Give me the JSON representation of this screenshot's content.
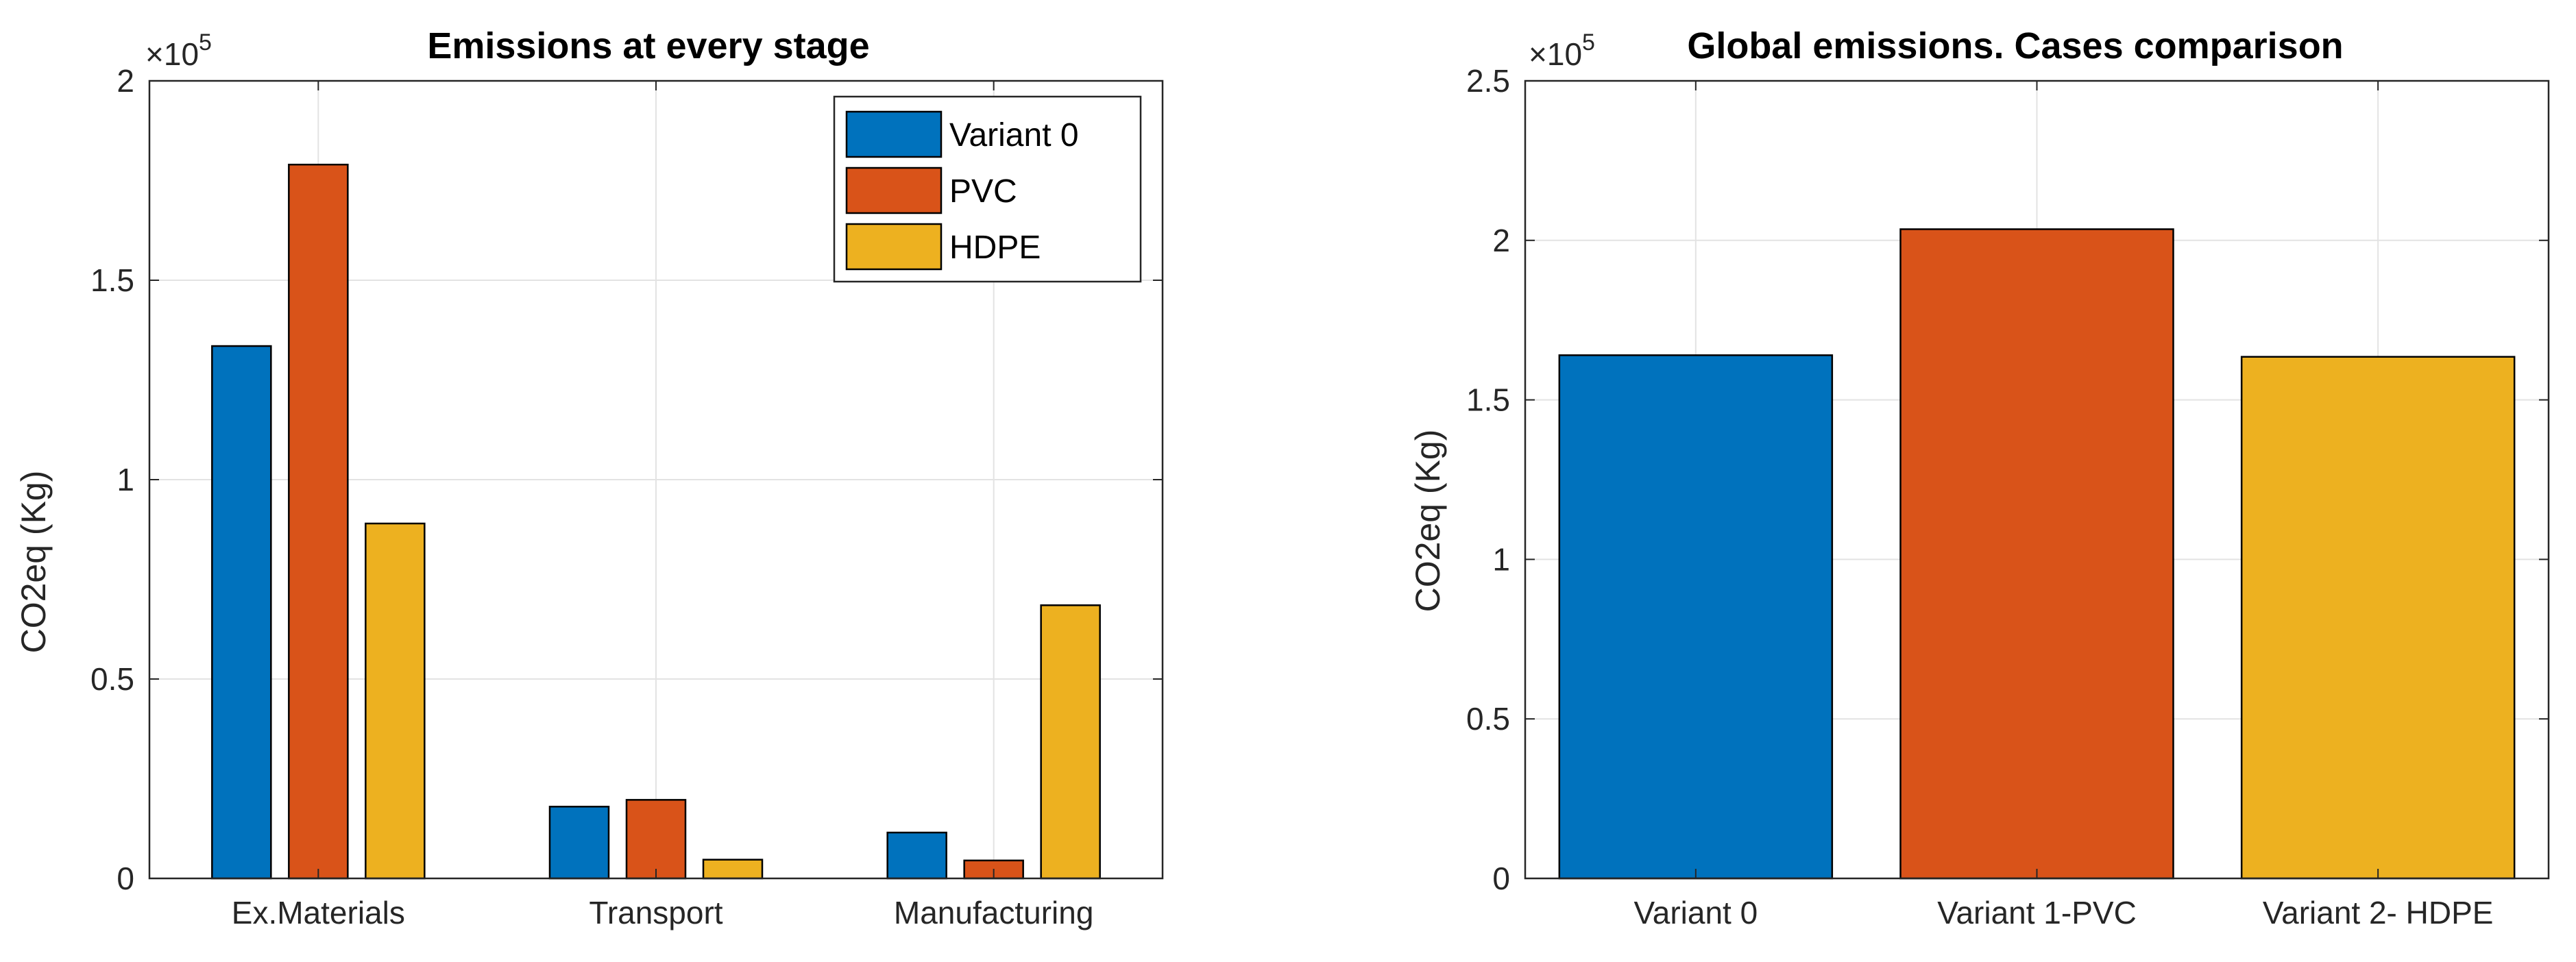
{
  "chart_data": [
    {
      "type": "bar",
      "title": "Emissions at every stage",
      "xlabel": "",
      "ylabel": "CO2eq (Kg)",
      "exponent_label": "×10",
      "exponent_power": "5",
      "ylim": [
        0,
        2
      ],
      "yticks": [
        "0",
        "0.5",
        "1",
        "1.5",
        "2"
      ],
      "ytick_values": [
        0,
        0.5,
        1,
        1.5,
        2
      ],
      "categories": [
        "Ex.Materials",
        "Transport",
        "Manufacturing"
      ],
      "series": [
        {
          "name": "Variant 0",
          "color": "#0072BD",
          "values": [
            1.335,
            0.18,
            0.115
          ]
        },
        {
          "name": "PVC",
          "color": "#D95319",
          "values": [
            1.79,
            0.197,
            0.045
          ]
        },
        {
          "name": "HDPE",
          "color": "#EDB120",
          "values": [
            0.89,
            0.047,
            0.685
          ]
        }
      ],
      "legend": "top-right",
      "grid": true
    },
    {
      "type": "bar",
      "title": "Global emissions. Cases comparison",
      "xlabel": "",
      "ylabel": "CO2eq (Kg)",
      "exponent_label": "×10",
      "exponent_power": "5",
      "ylim": [
        0,
        2.5
      ],
      "yticks": [
        "0",
        "0.5",
        "1",
        "1.5",
        "2",
        "2.5"
      ],
      "ytick_values": [
        0,
        0.5,
        1,
        1.5,
        2,
        2.5
      ],
      "categories": [
        "Variant 0",
        "Variant 1-PVC",
        "Variant 2- HDPE"
      ],
      "values": [
        1.64,
        2.035,
        1.635
      ],
      "colors": [
        "#0072BD",
        "#D95319",
        "#EDB120"
      ],
      "grid": true
    }
  ]
}
